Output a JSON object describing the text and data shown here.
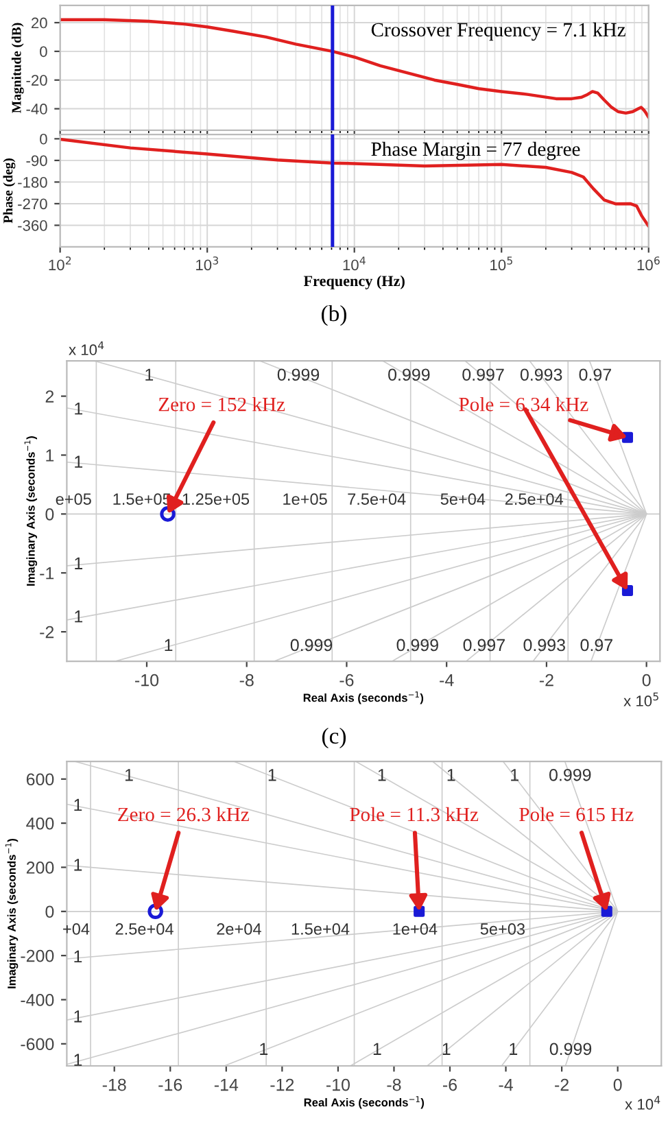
{
  "chart_data": [
    {
      "type": "line",
      "ylabel": "Magnitude (dB)",
      "log": "x",
      "grid": true,
      "tick_labels": "y",
      "xlim": [
        100,
        1000000
      ],
      "ylim": [
        -55,
        32
      ],
      "yticks": [
        -40,
        -20,
        0,
        20
      ],
      "x": [
        100,
        200,
        400,
        700,
        1000,
        1500,
        2500,
        4000,
        7100,
        10000,
        15000,
        25000,
        35000,
        50000,
        70000,
        100000,
        150000,
        235000,
        300000,
        350000,
        385000,
        415000,
        450000,
        500000,
        560000,
        620000,
        700000,
        780000,
        850000,
        890000,
        930000,
        960000,
        1000000
      ],
      "series": [
        {
          "color": "#e0201f",
          "values": [
            22,
            22,
            21,
            19,
            17,
            14,
            10,
            5,
            0,
            -4,
            -10,
            -16,
            -20,
            -23,
            -26,
            -28,
            -30,
            -33,
            -33,
            -32,
            -30,
            -28,
            -29,
            -34,
            -39,
            -42,
            -43,
            -42,
            -40,
            -39,
            -41,
            -43,
            -46
          ]
        }
      ],
      "ref_lines": [
        {
          "axis": "x",
          "value": 7100,
          "color": "#1a1ad6"
        }
      ],
      "annotations": [
        "Crossover Frequency = 7.1 kHz"
      ]
    },
    {
      "type": "line",
      "ylabel": "Phase (deg)",
      "xlabel": "Frequency (Hz)",
      "log": "x",
      "grid": true,
      "xlim": [
        100,
        1000000
      ],
      "ylim": [
        -450,
        18
      ],
      "yticks": [
        -360,
        -270,
        -180,
        -90,
        0
      ],
      "xticks": [
        {
          "value": 100,
          "label": "10$^{2}$"
        },
        {
          "value": 1000,
          "label": "10$^{3}$"
        },
        {
          "value": 10000,
          "label": "10$^{4}$"
        },
        {
          "value": 100000,
          "label": "10$^{5}$"
        },
        {
          "value": 1000000,
          "label": "10$^{6}$"
        }
      ],
      "x": [
        100,
        300,
        1000,
        3000,
        7100,
        10000,
        30000,
        100000,
        200000,
        300000,
        360000,
        420000,
        500000,
        600000,
        750000,
        830000,
        900000,
        1000000
      ],
      "series": [
        {
          "color": "#e0201f",
          "values": [
            -2,
            -38,
            -63,
            -88,
            -101,
            -103,
            -113,
            -107,
            -119,
            -140,
            -159,
            -207,
            -255,
            -271,
            -270,
            -280,
            -322,
            -364
          ]
        }
      ],
      "ref_lines": [
        {
          "axis": "x",
          "value": 7100,
          "color": "#1a1ad6"
        }
      ],
      "annotations": [
        "Phase Margin = 77 degree",
        "(b)"
      ]
    },
    {
      "type": "scatter",
      "xlabel": "Real Axis (seconds$^{−1}$)",
      "ylabel": "Imaginary Axis (seconds$^{−1}$)",
      "xlim": [
        -11.6,
        0.27
      ],
      "ylim": [
        -2.5,
        2.6
      ],
      "xticks": [
        -10,
        -8,
        -6,
        -4,
        -2,
        0
      ],
      "yticks": [
        -2,
        -1,
        0,
        1,
        2
      ],
      "series": [
        {
          "type": "line",
          "name": "1",
          "color": "#cccccc",
          "x": [
            -11.06,
            0
          ],
          "values": [
            2.6,
            0
          ]
        },
        {
          "type": "line",
          "name": "0.999",
          "color": "#cccccc",
          "x": [
            -7.74,
            0
          ],
          "values": [
            2.6,
            0
          ]
        },
        {
          "type": "line",
          "name": "0.999",
          "color": "#cccccc",
          "x": [
            -5.28,
            0
          ],
          "values": [
            2.6,
            0
          ]
        },
        {
          "type": "line",
          "name": "0.997",
          "color": "#cccccc",
          "x": [
            -3.63,
            0
          ],
          "values": [
            2.6,
            0
          ]
        },
        {
          "type": "line",
          "name": "0.993",
          "color": "#cccccc",
          "x": [
            -2.34,
            0
          ],
          "values": [
            2.6,
            0
          ]
        },
        {
          "type": "line",
          "name": "0.97",
          "color": "#cccccc",
          "x": [
            -1.14,
            0
          ],
          "values": [
            2.6,
            0
          ]
        },
        {
          "type": "line",
          "name": "1",
          "color": "#cccccc",
          "x": [
            -11.6,
            0
          ],
          "values": [
            1.8,
            0
          ]
        },
        {
          "type": "line",
          "name": "1",
          "color": "#cccccc",
          "x": [
            -11.6,
            0
          ],
          "values": [
            0.88,
            0
          ]
        },
        {
          "type": "line",
          "name": "1",
          "color": "#cccccc",
          "x": [
            -11.6,
            0
          ],
          "values": [
            -0.88,
            0
          ]
        },
        {
          "type": "line",
          "name": "1",
          "color": "#cccccc",
          "x": [
            -11.6,
            0
          ],
          "values": [
            -1.8,
            0
          ]
        },
        {
          "type": "line",
          "name": "1",
          "color": "#cccccc",
          "x": [
            -10.63,
            0
          ],
          "values": [
            -2.5,
            0
          ]
        },
        {
          "type": "line",
          "name": "0.999",
          "color": "#cccccc",
          "x": [
            -7.45,
            0
          ],
          "values": [
            -2.5,
            0
          ]
        },
        {
          "type": "line",
          "name": "0.999",
          "color": "#cccccc",
          "x": [
            -5.09,
            0
          ],
          "values": [
            -2.5,
            0
          ]
        },
        {
          "type": "line",
          "name": "0.997",
          "color": "#cccccc",
          "x": [
            -3.61,
            0
          ],
          "values": [
            -2.5,
            0
          ]
        },
        {
          "type": "line",
          "name": "0.993",
          "color": "#cccccc",
          "x": [
            -2.27,
            0
          ],
          "values": [
            -2.5,
            0
          ]
        },
        {
          "type": "line",
          "name": "0.97",
          "color": "#cccccc",
          "x": [
            -1.11,
            0
          ],
          "values": [
            -2.5,
            0
          ]
        },
        {
          "type": "scatter",
          "marker": "circle",
          "color": "#1a1ad6",
          "x": [
            -9.58
          ],
          "values": [
            0
          ]
        },
        {
          "type": "scatter",
          "marker": "square",
          "color": "#1a1ad6",
          "x": [
            -0.38,
            -0.38
          ],
          "values": [
            1.3,
            -1.3
          ]
        }
      ],
      "ref_lines": [
        {
          "axis": "x",
          "value": -11.01,
          "label": "e+05",
          "color": "#cccccc"
        },
        {
          "axis": "x",
          "value": -9.42,
          "label": "1.5e+05",
          "color": "#cccccc"
        },
        {
          "axis": "x",
          "value": -7.85,
          "label": "1.25e+05",
          "color": "#cccccc"
        },
        {
          "axis": "x",
          "value": -6.29,
          "label": "1e+05",
          "color": "#cccccc"
        },
        {
          "axis": "x",
          "value": -4.72,
          "label": "7.5e+04",
          "color": "#cccccc"
        },
        {
          "axis": "x",
          "value": -3.13,
          "label": "5e+04",
          "color": "#cccccc"
        },
        {
          "axis": "x",
          "value": -1.57,
          "label": "2.5e+04",
          "color": "#cccccc"
        },
        {
          "axis": "y",
          "value": 0,
          "color": "#cccccc"
        }
      ],
      "annotations": [
        {
          "text": "Zero = 152 kHz",
          "x": -9.58,
          "y": 0
        },
        {
          "text": "Pole = 6.34 kHz",
          "x": -0.38,
          "y": 1.3
        },
        "x 10$^{4}$",
        "x 10$^{5}$",
        "(c)"
      ]
    },
    {
      "type": "scatter",
      "xlabel": "Real Axis (seconds$^{−1}$)",
      "ylabel": "Imaginary Axis (seconds$^{−1}$)",
      "xlim": [
        -19.7,
        1.56
      ],
      "ylim": [
        -700,
        680
      ],
      "xticks": [
        -18,
        -16,
        -14,
        -12,
        -10,
        -8,
        -6,
        -4,
        -2,
        0
      ],
      "yticks": [
        -600,
        -400,
        -200,
        0,
        200,
        400,
        600
      ],
      "series": [
        {
          "type": "line",
          "name": "1",
          "color": "#cccccc",
          "x": [
            -19.42,
            0
          ],
          "values": [
            680,
            0
          ]
        },
        {
          "type": "line",
          "name": "1",
          "color": "#cccccc",
          "x": [
            -13.73,
            0
          ],
          "values": [
            680,
            0
          ]
        },
        {
          "type": "line",
          "name": "1",
          "color": "#cccccc",
          "x": [
            -9.37,
            0
          ],
          "values": [
            680,
            0
          ]
        },
        {
          "type": "line",
          "name": "1",
          "color": "#cccccc",
          "x": [
            -6.62,
            0
          ],
          "values": [
            680,
            0
          ]
        },
        {
          "type": "line",
          "name": "1",
          "color": "#cccccc",
          "x": [
            -4.1,
            0
          ],
          "values": [
            680,
            0
          ]
        },
        {
          "type": "line",
          "name": "0.999",
          "color": "#cccccc",
          "x": [
            -1.89,
            0
          ],
          "values": [
            680,
            0
          ]
        },
        {
          "type": "line",
          "name": "1",
          "color": "#cccccc",
          "x": [
            -19.7,
            0
          ],
          "values": [
            486,
            0
          ]
        },
        {
          "type": "line",
          "name": "1",
          "color": "#cccccc",
          "x": [
            -19.7,
            0
          ],
          "values": [
            209,
            0
          ]
        },
        {
          "type": "line",
          "name": "1",
          "color": "#cccccc",
          "x": [
            -19.7,
            0
          ],
          "values": [
            -215,
            0
          ]
        },
        {
          "type": "line",
          "name": "1",
          "color": "#cccccc",
          "x": [
            -19.7,
            0
          ],
          "values": [
            -492,
            0
          ]
        },
        {
          "type": "line",
          "name": "1",
          "color": "#cccccc",
          "x": [
            -19.7,
            0
          ],
          "values": [
            -693,
            0
          ]
        },
        {
          "type": "line",
          "name": "1",
          "color": "#cccccc",
          "x": [
            -14.07,
            0
          ],
          "values": [
            -700,
            0
          ]
        },
        {
          "type": "line",
          "name": "1",
          "color": "#cccccc",
          "x": [
            -9.56,
            0
          ],
          "values": [
            -700,
            0
          ]
        },
        {
          "type": "line",
          "name": "1",
          "color": "#cccccc",
          "x": [
            -6.81,
            0
          ],
          "values": [
            -700,
            0
          ]
        },
        {
          "type": "line",
          "name": "1",
          "color": "#cccccc",
          "x": [
            -4.15,
            0
          ],
          "values": [
            -700,
            0
          ]
        },
        {
          "type": "line",
          "name": "0.999",
          "color": "#cccccc",
          "x": [
            -1.87,
            0
          ],
          "values": [
            -700,
            0
          ]
        },
        {
          "type": "scatter",
          "marker": "circle",
          "color": "#1a1ad6",
          "x": [
            -16.53
          ],
          "values": [
            0
          ]
        },
        {
          "type": "scatter",
          "marker": "square",
          "color": "#1a1ad6",
          "x": [
            -7.1,
            -0.39
          ],
          "values": [
            0,
            0
          ]
        }
      ],
      "ref_lines": [
        {
          "axis": "x",
          "value": -18.85,
          "color": "#cccccc"
        },
        {
          "axis": "x",
          "value": -15.71,
          "label": "2.5e+04",
          "color": "#cccccc"
        },
        {
          "axis": "x",
          "value": -12.57,
          "label": "2e+04",
          "color": "#cccccc"
        },
        {
          "axis": "x",
          "value": -9.42,
          "label": "1.5e+04",
          "color": "#cccccc"
        },
        {
          "axis": "x",
          "value": -6.28,
          "label": "1e+04",
          "color": "#cccccc"
        },
        {
          "axis": "x",
          "value": -3.14,
          "label": "5e+03",
          "color": "#cccccc"
        },
        {
          "axis": "y",
          "value": 0,
          "color": "#cccccc"
        }
      ],
      "annotations": [
        {
          "text": "Zero = 26.3 kHz",
          "x": -16.53,
          "y": 0
        },
        {
          "text": "Pole = 11.3 kHz",
          "x": -7.1,
          "y": 0
        },
        {
          "text": "Pole = 615 Hz",
          "x": -0.39,
          "y": 0
        },
        "x 10$^{4}$",
        "+04"
      ]
    }
  ]
}
